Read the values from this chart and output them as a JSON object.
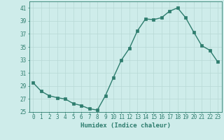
{
  "x": [
    0,
    1,
    2,
    3,
    4,
    5,
    6,
    7,
    8,
    9,
    10,
    11,
    12,
    13,
    14,
    15,
    16,
    17,
    18,
    19,
    20,
    21,
    22,
    23
  ],
  "y": [
    29.5,
    28.2,
    27.5,
    27.2,
    27.0,
    26.3,
    26.0,
    25.5,
    25.3,
    27.5,
    30.3,
    33.0,
    34.8,
    37.5,
    39.3,
    39.2,
    39.5,
    40.5,
    41.0,
    39.5,
    37.3,
    35.2,
    34.5,
    32.7
  ],
  "line_color": "#2e7d6e",
  "marker": "s",
  "marker_size": 2.2,
  "bg_color": "#ceecea",
  "grid_color": "#b8d8d5",
  "xlabel": "Humidex (Indice chaleur)",
  "ylim": [
    25,
    42
  ],
  "xlim": [
    -0.5,
    23.5
  ],
  "yticks": [
    25,
    27,
    29,
    31,
    33,
    35,
    37,
    39,
    41
  ],
  "xticks": [
    0,
    1,
    2,
    3,
    4,
    5,
    6,
    7,
    8,
    9,
    10,
    11,
    12,
    13,
    14,
    15,
    16,
    17,
    18,
    19,
    20,
    21,
    22,
    23
  ],
  "tick_label_fontsize": 5.5,
  "xlabel_fontsize": 6.5,
  "line_width": 1.0,
  "axis_color": "#2e7d6e",
  "spine_color": "#2e7d6e"
}
